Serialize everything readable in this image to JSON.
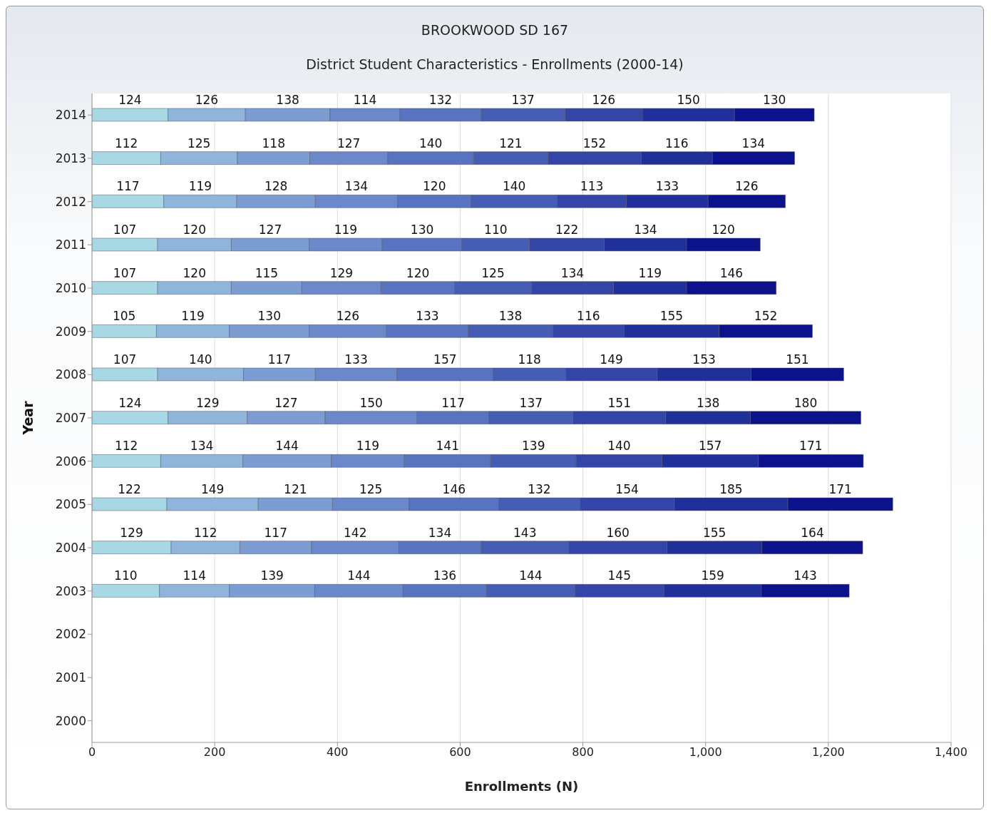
{
  "chart_data": {
    "type": "bar",
    "title": "BROOKWOOD SD 167",
    "subtitle": "District Student Characteristics - Enrollments (2000-14)",
    "xlabel": "Enrollments (N)",
    "ylabel": "Year",
    "orientation": "horizontal",
    "stacked": true,
    "data_labels": true,
    "grid": "x",
    "legend": false,
    "categories": [
      "2014",
      "2013",
      "2012",
      "2011",
      "2010",
      "2009",
      "2008",
      "2007",
      "2006",
      "2005",
      "2004",
      "2003",
      "2002",
      "2001",
      "2000"
    ],
    "xlim": [
      0,
      1400
    ],
    "xticks": [
      0,
      200,
      400,
      600,
      800,
      {
        "value": 1000,
        "label": "1,000"
      },
      {
        "value": 1200,
        "label": "1,200"
      },
      {
        "value": 1400,
        "label": "1,400"
      }
    ],
    "series": [
      {
        "color": "#a8d8e4",
        "values": [
          124,
          112,
          117,
          107,
          107,
          105,
          107,
          124,
          112,
          122,
          129,
          110,
          null,
          null,
          null
        ]
      },
      {
        "color": "#8fb6da",
        "values": [
          126,
          125,
          119,
          120,
          120,
          119,
          140,
          129,
          134,
          149,
          112,
          114,
          null,
          null,
          null
        ]
      },
      {
        "color": "#7b9dd2",
        "values": [
          138,
          118,
          128,
          127,
          115,
          130,
          117,
          127,
          144,
          121,
          117,
          139,
          null,
          null,
          null
        ]
      },
      {
        "color": "#6a88ca",
        "values": [
          114,
          127,
          134,
          119,
          129,
          126,
          133,
          150,
          119,
          125,
          142,
          144,
          null,
          null,
          null
        ]
      },
      {
        "color": "#5873c0",
        "values": [
          132,
          140,
          120,
          130,
          120,
          133,
          157,
          117,
          141,
          146,
          134,
          136,
          null,
          null,
          null
        ]
      },
      {
        "color": "#465db4",
        "values": [
          137,
          121,
          140,
          110,
          125,
          138,
          118,
          137,
          139,
          132,
          143,
          144,
          null,
          null,
          null
        ]
      },
      {
        "color": "#3346a8",
        "values": [
          126,
          152,
          113,
          122,
          134,
          116,
          149,
          151,
          140,
          154,
          160,
          145,
          null,
          null,
          null
        ]
      },
      {
        "color": "#20309a",
        "values": [
          150,
          116,
          133,
          134,
          119,
          155,
          153,
          138,
          157,
          185,
          155,
          159,
          null,
          null,
          null
        ]
      },
      {
        "color": "#0b128c",
        "values": [
          130,
          134,
          126,
          120,
          146,
          152,
          151,
          180,
          171,
          171,
          164,
          143,
          null,
          null,
          null
        ]
      }
    ]
  }
}
